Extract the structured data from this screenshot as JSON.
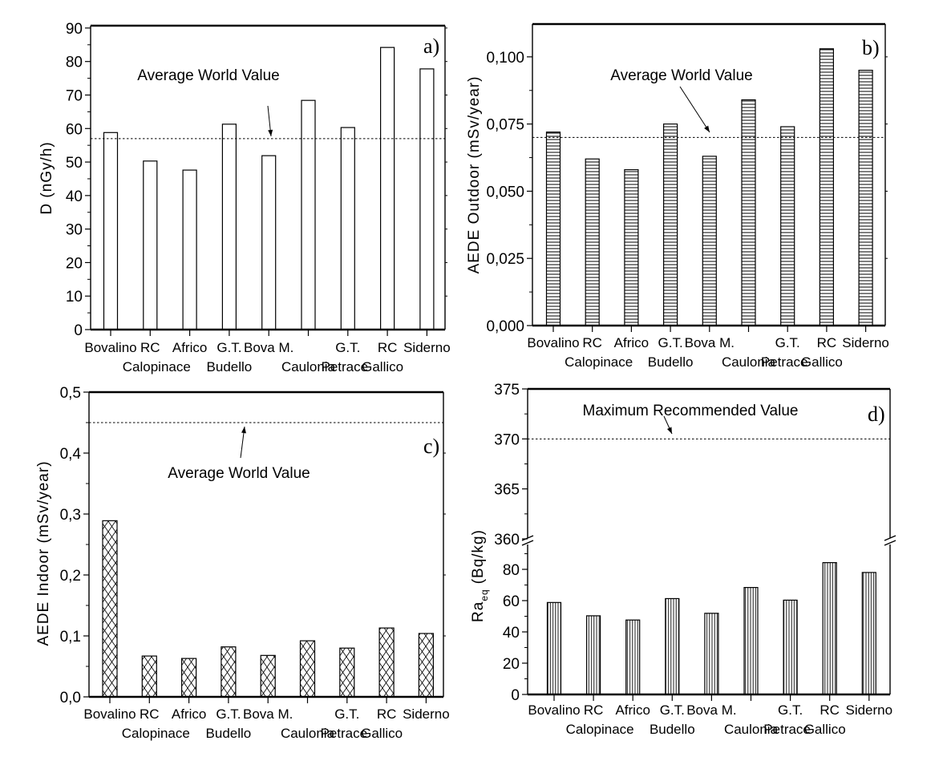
{
  "chart_data": [
    {
      "type": "bar",
      "panel": "a)",
      "title": "",
      "xlabel": "",
      "ylabel": "D (nGy/h)",
      "ylim": [
        0,
        90
      ],
      "yticks": [
        "0",
        "10",
        "20",
        "30",
        "40",
        "50",
        "60",
        "70",
        "80",
        "90"
      ],
      "categories": [
        "Bovalino",
        "RC Calopinace",
        "Africo",
        "G.T. Budello",
        "Bova M.",
        "Caulonia",
        "G.T. Petrace",
        "RC Gallico",
        "Siderno"
      ],
      "category_lines": [
        [
          "Bovalino",
          ""
        ],
        [
          "RC",
          "Calopinace"
        ],
        [
          "Africo",
          ""
        ],
        [
          "G.T.",
          "Budello"
        ],
        [
          "Bova M.",
          ""
        ],
        [
          "",
          "Caulonia"
        ],
        [
          "G.T.",
          "Petrace"
        ],
        [
          "RC",
          "Gallico"
        ],
        [
          "Siderno",
          ""
        ]
      ],
      "values": [
        58.8,
        50.3,
        47.6,
        61.3,
        51.9,
        68.4,
        60.3,
        84.2,
        77.8
      ],
      "reference_line": {
        "value": 57,
        "label": "Average World Value"
      },
      "pattern": "none",
      "grid": false
    },
    {
      "type": "bar",
      "panel": "b)",
      "title": "",
      "xlabel": "",
      "ylabel": "AEDE Outdoor (mSv/year)",
      "ylim": [
        0,
        0.112
      ],
      "yticks": [
        "0,000",
        "0,025",
        "0,050",
        "0,075",
        "0,100"
      ],
      "categories": [
        "Bovalino",
        "RC Calopinace",
        "Africo",
        "G.T. Budello",
        "Bova M.",
        "Caulonia",
        "G.T. Petrace",
        "RC Gallico",
        "Siderno"
      ],
      "category_lines": [
        [
          "Bovalino",
          ""
        ],
        [
          "RC",
          "Calopinace"
        ],
        [
          "Africo",
          ""
        ],
        [
          "G.T.",
          "Budello"
        ],
        [
          "Bova M.",
          ""
        ],
        [
          "",
          "Caulonia"
        ],
        [
          "G.T.",
          "Petrace"
        ],
        [
          "RC",
          "Gallico"
        ],
        [
          "Siderno",
          ""
        ]
      ],
      "values": [
        0.072,
        0.062,
        0.058,
        0.075,
        0.063,
        0.084,
        0.074,
        0.103,
        0.095
      ],
      "reference_line": {
        "value": 0.07,
        "label": "Average World Value"
      },
      "pattern": "horizontal-lines",
      "grid": false
    },
    {
      "type": "bar",
      "panel": "c)",
      "title": "",
      "xlabel": "",
      "ylabel": "AEDE Indoor (mSv/year)",
      "ylim": [
        0,
        0.5
      ],
      "yticks": [
        "0,0",
        "0,1",
        "0,2",
        "0,3",
        "0,4",
        "0,5"
      ],
      "categories": [
        "Bovalino",
        "RC Calopinace",
        "Africo",
        "G.T. Budello",
        "Bova M.",
        "Caulonia",
        "G.T. Petrace",
        "RC Gallico",
        "Siderno"
      ],
      "category_lines": [
        [
          "Bovalino",
          ""
        ],
        [
          "RC",
          "Calopinace"
        ],
        [
          "Africo",
          ""
        ],
        [
          "G.T.",
          "Budello"
        ],
        [
          "Bova M.",
          ""
        ],
        [
          "",
          "Caulonia"
        ],
        [
          "G.T.",
          "Petrace"
        ],
        [
          "RC",
          "Gallico"
        ],
        [
          "Siderno",
          ""
        ]
      ],
      "values": [
        0.289,
        0.067,
        0.063,
        0.082,
        0.068,
        0.092,
        0.08,
        0.113,
        0.104
      ],
      "reference_line": {
        "value": 0.45,
        "label": "Average World Value"
      },
      "pattern": "crosshatch",
      "grid": false
    },
    {
      "type": "bar",
      "panel": "d)",
      "title": "",
      "xlabel": "",
      "ylabel": "Ra",
      "ylabel_sub": "eq",
      "ylabel_unit": "(Bq/kg)",
      "ylim": [
        0,
        375
      ],
      "axis_break": {
        "lower": [
          0,
          95
        ],
        "upper": [
          360,
          375
        ]
      },
      "yticks_lower": [
        "0",
        "20",
        "40",
        "60",
        "80"
      ],
      "yticks_upper": [
        "360",
        "365",
        "370",
        "375"
      ],
      "categories": [
        "Bovalino",
        "RC Calopinace",
        "Africo",
        "G.T. Budello",
        "Bova M.",
        "Caulonia",
        "G.T. Petrace",
        "RC Gallico",
        "Siderno"
      ],
      "category_lines": [
        [
          "Bovalino",
          ""
        ],
        [
          "RC",
          "Calopinace"
        ],
        [
          "Africo",
          ""
        ],
        [
          "G.T.",
          "Budello"
        ],
        [
          "Bova M.",
          ""
        ],
        [
          "",
          "Caulonia"
        ],
        [
          "G.T.",
          "Petrace"
        ],
        [
          "RC",
          "Gallico"
        ],
        [
          "Siderno",
          ""
        ]
      ],
      "values": [
        58.8,
        50.3,
        47.6,
        61.3,
        51.9,
        68.4,
        60.3,
        84.3,
        78.0
      ],
      "reference_line": {
        "value": 370,
        "label": "Maximum Recommended Value"
      },
      "pattern": "vertical-lines",
      "grid": false
    }
  ]
}
